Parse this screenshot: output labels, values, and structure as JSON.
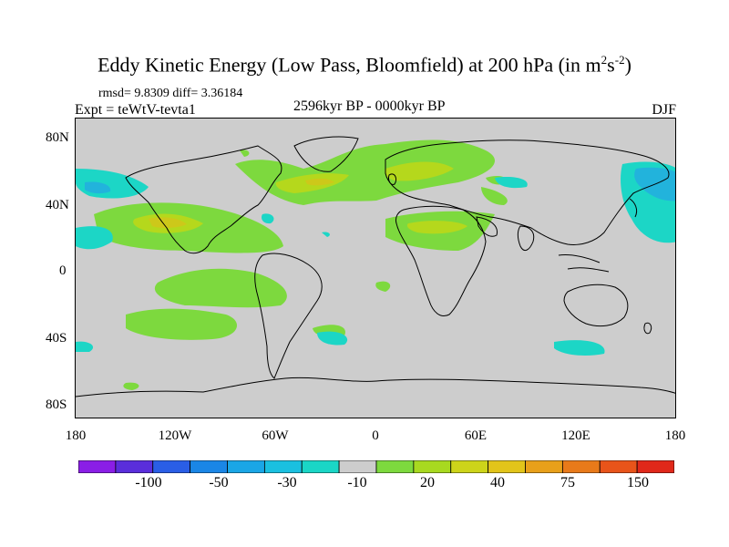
{
  "title": {
    "main": "Eddy Kinetic Energy (Low Pass, Bloomfield) at 200 hPa (in m",
    "sup1": "2",
    "mid": "s",
    "sup2": "-2",
    "end": ")"
  },
  "stats": "rmsd= 9.8309 diff= 3.36184",
  "experiment": "Expt = teWtV-tevta1",
  "period": "2596kyr BP - 0000kyr BP",
  "season": "DJF",
  "map": {
    "y_axis": [
      "80N",
      "40N",
      "0",
      "40S",
      "80S"
    ],
    "x_axis": [
      "180",
      "120W",
      "60W",
      "0",
      "60E",
      "120E",
      "180"
    ],
    "colors": {
      "background": "#cdcdcd",
      "green_light": "#7dd93e",
      "green_yellow": "#b5d81c",
      "yellow": "#cdc81a",
      "cyan": "#1cd6c6",
      "teal_blue": "#22b3dc",
      "coast": "#000000"
    }
  },
  "colorbar": {
    "colors": [
      "#8a1ee6",
      "#5a2edb",
      "#2a5ee6",
      "#1a86e6",
      "#1aa6e6",
      "#1ac0e0",
      "#1ad6c6",
      "#cdcdcd",
      "#7dd93e",
      "#a8d920",
      "#cdd41a",
      "#e2c41a",
      "#e8a01a",
      "#e87a1a",
      "#e8541a",
      "#e0281a"
    ],
    "labels": [
      "-100",
      "-50",
      "-30",
      "-10",
      "20",
      "40",
      "75",
      "150"
    ]
  }
}
